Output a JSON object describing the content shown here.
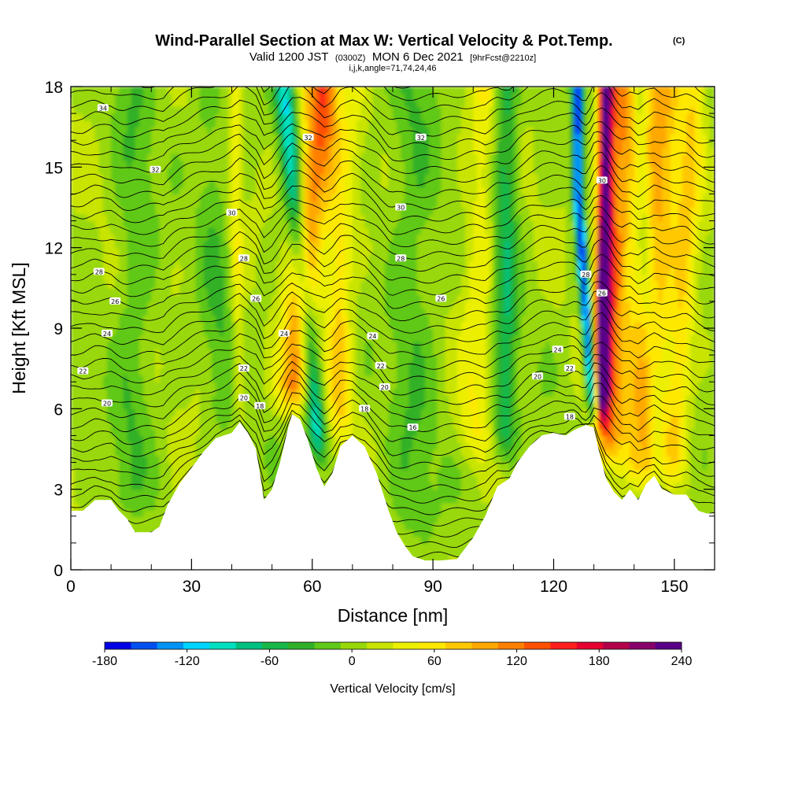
{
  "title": {
    "main": "Wind-Parallel Section at Max W: Vertical Velocity & Pot.Temp.",
    "copyright": "(C)",
    "valid_prefix": "Valid 1200 JST",
    "valid_utc": "(0300Z)",
    "valid_date": "MON 6 Dec 2021",
    "forecast": "[9hrFcst@2210z]",
    "grid_info": "i,j,k,angle=71,74,24,46"
  },
  "chart_data": {
    "type": "heatmap",
    "xlabel": "Distance [nm]",
    "ylabel": "Height [Kft MSL]",
    "xlim": [
      0,
      160
    ],
    "ylim": [
      0,
      18
    ],
    "x_ticks": [
      "0",
      "30",
      "60",
      "90",
      "120",
      "150"
    ],
    "y_ticks": [
      "0",
      "3",
      "6",
      "9",
      "12",
      "15",
      "18"
    ],
    "colorbar": {
      "label": "Vertical Velocity [cm/s]",
      "min": -180,
      "max": 240,
      "step": 20,
      "tick_labels": [
        "-180",
        "-120",
        "-60",
        "0",
        "60",
        "120",
        "180",
        "240"
      ],
      "colors": [
        "#0000e6",
        "#0050f0",
        "#0094f5",
        "#00d4ff",
        "#00e0c0",
        "#00c080",
        "#18b848",
        "#30b028",
        "#60c818",
        "#98d80a",
        "#c8e400",
        "#ecf000",
        "#ffe800",
        "#ffc800",
        "#ffa800",
        "#ff8000",
        "#ff5000",
        "#ff1e1e",
        "#e60030",
        "#b4004a",
        "#88006a",
        "#5a0088"
      ]
    },
    "terrain_top_kft": [
      [
        0,
        2.2
      ],
      [
        3,
        2.2
      ],
      [
        6,
        2.6
      ],
      [
        10,
        2.6
      ],
      [
        12,
        2.2
      ],
      [
        14,
        1.9
      ],
      [
        16,
        1.4
      ],
      [
        20,
        1.4
      ],
      [
        22,
        1.6
      ],
      [
        24,
        2.4
      ],
      [
        27,
        3.2
      ],
      [
        30,
        3.8
      ],
      [
        33,
        4.4
      ],
      [
        36,
        4.9
      ],
      [
        40,
        5.1
      ],
      [
        42,
        5.5
      ],
      [
        44,
        5.1
      ],
      [
        46,
        4.5
      ],
      [
        47,
        3.6
      ],
      [
        48,
        2.6
      ],
      [
        50,
        3.0
      ],
      [
        52,
        4.0
      ],
      [
        54,
        5.3
      ],
      [
        55,
        5.8
      ],
      [
        57,
        5.6
      ],
      [
        59,
        4.8
      ],
      [
        61,
        3.8
      ],
      [
        63,
        3.1
      ],
      [
        65,
        3.6
      ],
      [
        67,
        4.6
      ],
      [
        70,
        5.0
      ],
      [
        73,
        4.6
      ],
      [
        76,
        3.6
      ],
      [
        79,
        2.2
      ],
      [
        81,
        1.4
      ],
      [
        83,
        0.9
      ],
      [
        85,
        0.5
      ],
      [
        88,
        0.35
      ],
      [
        92,
        0.35
      ],
      [
        96,
        0.4
      ],
      [
        98,
        0.8
      ],
      [
        100,
        1.2
      ],
      [
        103,
        2.0
      ],
      [
        106,
        3.1
      ],
      [
        109,
        3.4
      ],
      [
        111,
        4.0
      ],
      [
        114,
        4.6
      ],
      [
        117,
        5.0
      ],
      [
        120,
        5.1
      ],
      [
        123,
        5.0
      ],
      [
        125,
        5.2
      ],
      [
        128,
        5.4
      ],
      [
        130,
        5.3
      ],
      [
        131,
        4.6
      ],
      [
        133,
        3.4
      ],
      [
        135,
        2.9
      ],
      [
        137,
        2.6
      ],
      [
        139,
        3.0
      ],
      [
        141,
        2.6
      ],
      [
        143,
        3.2
      ],
      [
        145,
        3.5
      ],
      [
        147,
        3.0
      ],
      [
        150,
        2.8
      ],
      [
        153,
        2.8
      ],
      [
        156,
        2.2
      ],
      [
        158,
        2.1
      ],
      [
        160,
        2.1
      ]
    ],
    "updraft_streaks": [
      {
        "x_base": 55,
        "y_base": 5.6,
        "x_top": 62,
        "y_top": 18,
        "peak_cms": 120,
        "width_nm": 4
      },
      {
        "x_base": 42,
        "y_base": 5.5,
        "x_top": 41,
        "y_top": 13,
        "peak_cms": 40,
        "width_nm": 1.5
      },
      {
        "x_base": 68,
        "y_base": 5,
        "x_top": 64,
        "y_top": 18,
        "peak_cms": 40,
        "width_nm": 3
      },
      {
        "x_base": 132,
        "y_base": 5.5,
        "x_top": 133,
        "y_top": 18,
        "peak_cms": 220,
        "width_nm": 1.8
      },
      {
        "x_base": 133,
        "y_base": 4,
        "x_top": 137,
        "y_top": 18,
        "peak_cms": 110,
        "width_nm": 4
      },
      {
        "x_base": 142,
        "y_base": 3,
        "x_top": 147,
        "y_top": 18,
        "peak_cms": 90,
        "width_nm": 5
      },
      {
        "x_base": 150,
        "y_base": 3.5,
        "x_top": 155,
        "y_top": 18,
        "peak_cms": 60,
        "width_nm": 3
      },
      {
        "x_base": 100,
        "y_base": 4,
        "x_top": 103,
        "y_top": 18,
        "peak_cms": 40,
        "width_nm": 4
      },
      {
        "x_base": 65,
        "y_base": 4,
        "x_top": 70,
        "y_top": 18,
        "peak_cms": 30,
        "width_nm": 3
      }
    ],
    "downdraft_streaks": [
      {
        "x_base": 62,
        "y_base": 4,
        "x_top": 53,
        "y_top": 18,
        "peak_cms": -110,
        "width_nm": 2.5
      },
      {
        "x_base": 130,
        "y_base": 5.5,
        "x_top": 126,
        "y_top": 14,
        "peak_cms": -180,
        "width_nm": 1.3
      },
      {
        "x_base": 108,
        "y_base": 4,
        "x_top": 108,
        "y_top": 8,
        "peak_cms": -70,
        "width_nm": 3
      },
      {
        "x_base": 14,
        "y_base": 2,
        "x_top": 16,
        "y_top": 8,
        "peak_cms": -30,
        "width_nm": 5
      },
      {
        "x_base": 38,
        "y_base": 5,
        "x_top": 34,
        "y_top": 18,
        "peak_cms": -30,
        "width_nm": 4
      },
      {
        "x_base": 85,
        "y_base": 1,
        "x_top": 85,
        "y_top": 5,
        "peak_cms": -30,
        "width_nm": 6
      },
      {
        "x_base": 146,
        "y_base": 3,
        "x_top": 141,
        "y_top": 18,
        "peak_cms": -40,
        "width_nm": 2
      }
    ],
    "isentrope_labels": [
      {
        "text": "34",
        "x": 8,
        "y": 17.2
      },
      {
        "text": "32",
        "x": 21,
        "y": 14.9
      },
      {
        "text": "32",
        "x": 59,
        "y": 16.1
      },
      {
        "text": "32",
        "x": 87,
        "y": 16.1
      },
      {
        "text": "30",
        "x": 40,
        "y": 13.3
      },
      {
        "text": "30",
        "x": 82,
        "y": 13.5
      },
      {
        "text": "30",
        "x": 132,
        "y": 14.5
      },
      {
        "text": "28",
        "x": 7,
        "y": 11.1
      },
      {
        "text": "28",
        "x": 43,
        "y": 11.6
      },
      {
        "text": "28",
        "x": 82,
        "y": 11.6
      },
      {
        "text": "28",
        "x": 128,
        "y": 11.0
      },
      {
        "text": "26",
        "x": 11,
        "y": 10.0
      },
      {
        "text": "26",
        "x": 46,
        "y": 10.1
      },
      {
        "text": "26",
        "x": 92,
        "y": 10.1
      },
      {
        "text": "26",
        "x": 132,
        "y": 10.3
      },
      {
        "text": "24",
        "x": 9,
        "y": 8.8
      },
      {
        "text": "24",
        "x": 53,
        "y": 8.8
      },
      {
        "text": "24",
        "x": 75,
        "y": 8.7
      },
      {
        "text": "24",
        "x": 121,
        "y": 8.2
      },
      {
        "text": "22",
        "x": 3,
        "y": 7.4
      },
      {
        "text": "22",
        "x": 43,
        "y": 7.5
      },
      {
        "text": "22",
        "x": 77,
        "y": 7.6
      },
      {
        "text": "22",
        "x": 124,
        "y": 7.5
      },
      {
        "text": "20",
        "x": 9,
        "y": 6.2
      },
      {
        "text": "20",
        "x": 43,
        "y": 6.4
      },
      {
        "text": "20",
        "x": 78,
        "y": 6.8
      },
      {
        "text": "20",
        "x": 116,
        "y": 7.2
      },
      {
        "text": "18",
        "x": 47,
        "y": 6.1
      },
      {
        "text": "18",
        "x": 73,
        "y": 6.0
      },
      {
        "text": "18",
        "x": 124,
        "y": 5.7
      },
      {
        "text": "16",
        "x": 85,
        "y": 5.3
      }
    ]
  }
}
